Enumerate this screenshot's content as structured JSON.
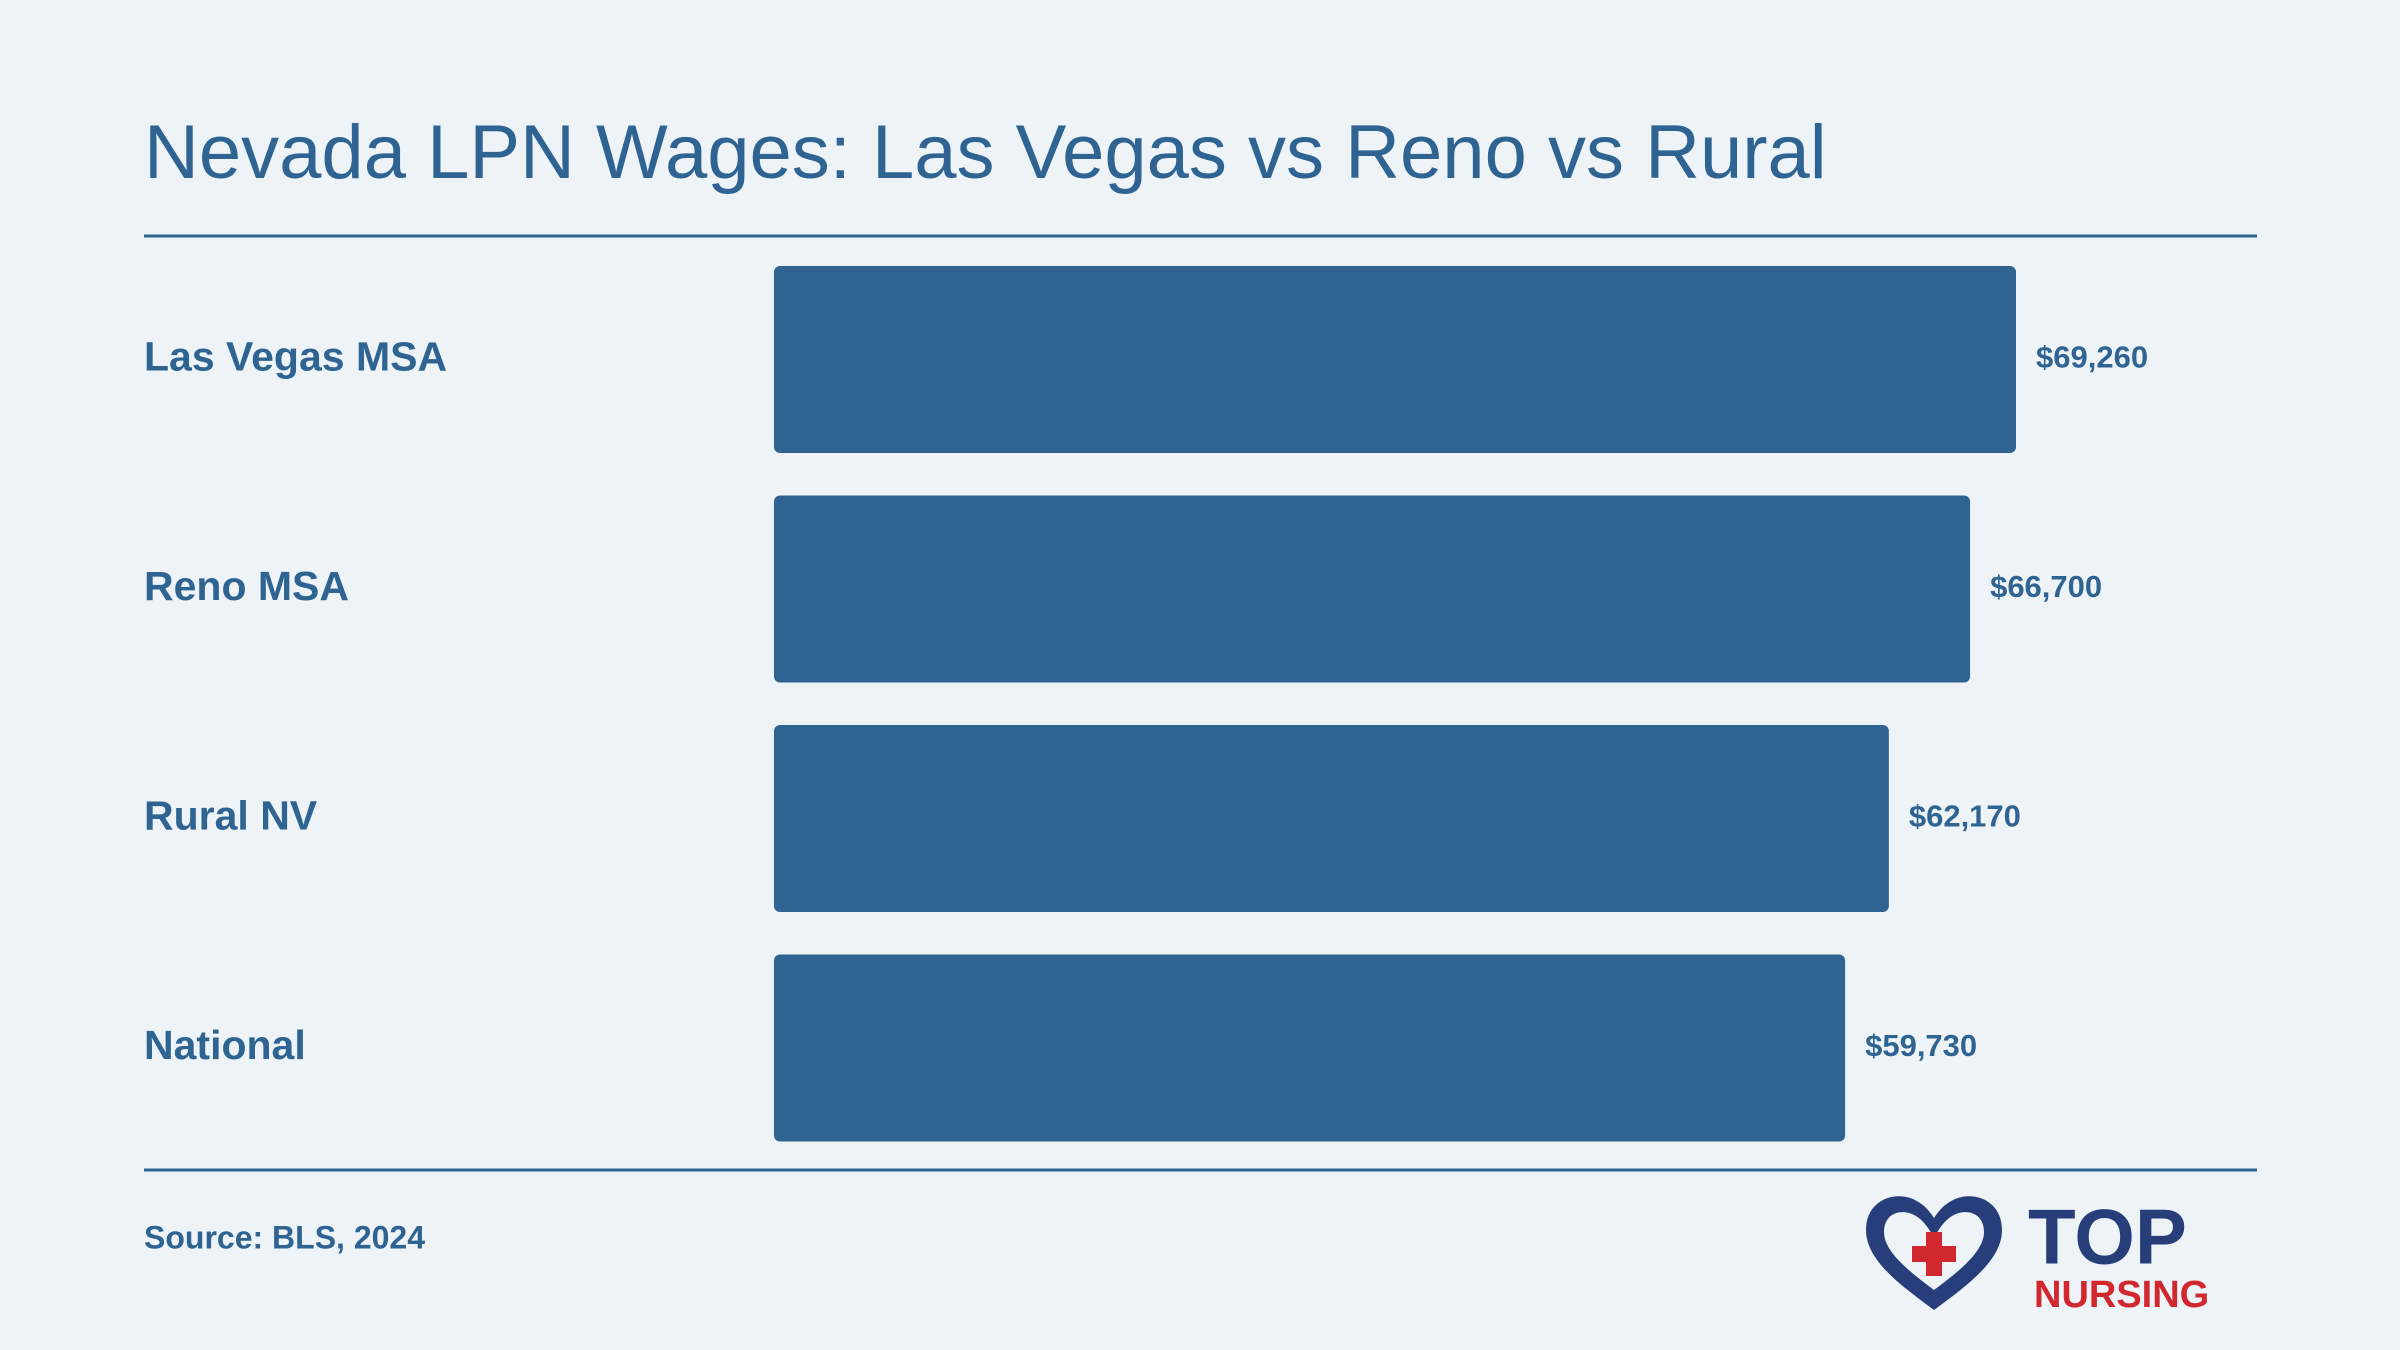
{
  "chart_data": {
    "type": "bar",
    "orientation": "horizontal",
    "title": "Nevada LPN Wages: Las Vegas vs Reno vs Rural",
    "categories": [
      "Las Vegas MSA",
      "Reno MSA",
      "Rural NV",
      "National"
    ],
    "values": [
      69260,
      66700,
      62170,
      59730
    ],
    "value_labels": [
      "$69,260",
      "$66,700",
      "$62,170",
      "$59,730"
    ],
    "color": "#2f6492",
    "source": "Source: BLS, 2024"
  },
  "logo": {
    "top": "TOP",
    "bottom": "NURSING"
  }
}
